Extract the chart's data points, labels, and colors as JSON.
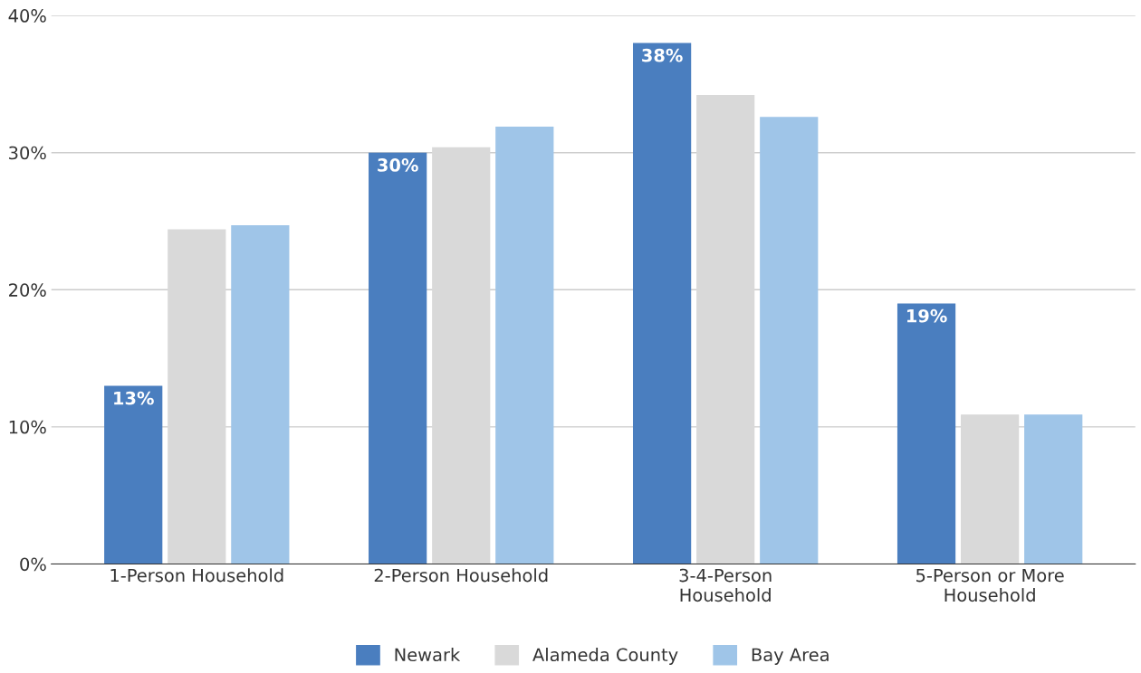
{
  "chart_data": {
    "type": "bar",
    "categories": [
      "1-Person Household",
      "2-Person Household",
      "3-4-Person\nHousehold",
      "5-Person or More\nHousehold"
    ],
    "series": [
      {
        "name": "Newark",
        "color": "#4a7ebf",
        "values": [
          13,
          30,
          38,
          19
        ],
        "value_labels": [
          "13%",
          "30%",
          "38%",
          "19%"
        ]
      },
      {
        "name": "Alameda County",
        "color": "#d9d9d9",
        "values": [
          24.4,
          30.4,
          34.2,
          10.9
        ]
      },
      {
        "name": "Bay Area",
        "color": "#9fc5e8",
        "values": [
          24.7,
          31.9,
          32.6,
          10.9
        ]
      }
    ],
    "ylim": [
      0,
      40
    ],
    "yticks": [
      {
        "value": 0,
        "label": "0%"
      },
      {
        "value": 10,
        "label": "10%"
      },
      {
        "value": 20,
        "label": "20%"
      },
      {
        "value": 30,
        "label": "30%"
      },
      {
        "value": 40,
        "label": "40%"
      }
    ],
    "grid": "y",
    "legend": "bottom"
  }
}
